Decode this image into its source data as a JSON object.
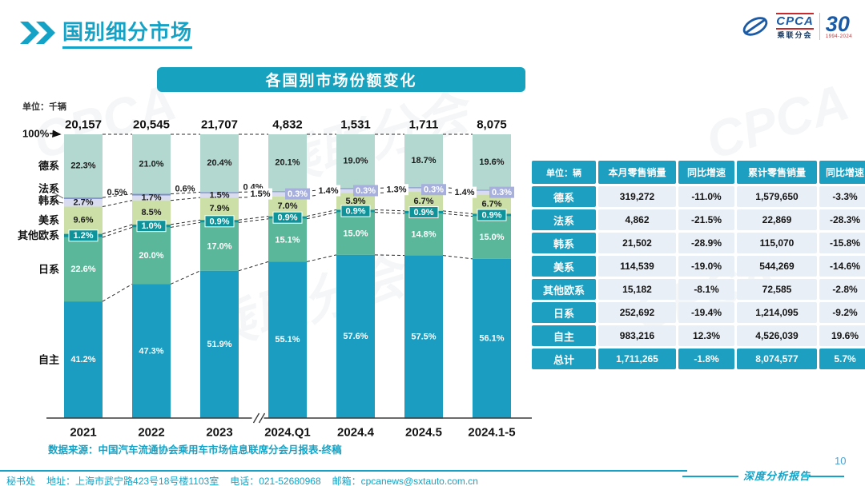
{
  "header": {
    "title": "国别细分市场",
    "logo": {
      "cpca": "CPCA",
      "sub": "乘联分会",
      "anniversary": "30",
      "years": "1994-2024"
    }
  },
  "colors": {
    "accent": "#14A3C6",
    "table_teal": "#1C9FC0"
  },
  "chart_data": {
    "type": "bar",
    "subtype": "stacked-100pct-column",
    "title": "各国别市场份额变化",
    "unit_label": "单位：千辆",
    "hundred_label": "100%",
    "categories": [
      "2021",
      "2022",
      "2023",
      "2024.Q1",
      "2024.4",
      "2024.5",
      "2024.1-5"
    ],
    "totals_thousand": [
      "20,157",
      "20,545",
      "21,707",
      "4,832",
      "1,531",
      "1,711",
      "8,075"
    ],
    "axis_break_after_index": 2,
    "legend_position": "left",
    "ylim": [
      0,
      100
    ],
    "series": [
      {
        "name": "德系",
        "color": "#B3D8D0",
        "values": [
          22.3,
          21.0,
          20.4,
          20.1,
          19.0,
          18.7,
          19.6
        ]
      },
      {
        "name": "法系",
        "color": "#7B8CC8",
        "badge_color": "#A7B0DC",
        "values": [
          0.5,
          0.6,
          0.4,
          0.3,
          0.3,
          0.3,
          0.3
        ]
      },
      {
        "name": "韩系",
        "color": "#D9DCEE",
        "values": [
          2.7,
          1.7,
          1.5,
          1.5,
          1.4,
          1.3,
          1.4
        ]
      },
      {
        "name": "美系",
        "color": "#CBDFA6",
        "values": [
          9.6,
          8.5,
          7.9,
          7.0,
          5.9,
          6.7,
          6.7
        ]
      },
      {
        "name": "其他欧系",
        "color": "#0E939B",
        "values": [
          1.2,
          1.0,
          0.9,
          0.9,
          0.9,
          0.9,
          0.9
        ]
      },
      {
        "name": "日系",
        "color": "#5BB79A",
        "values": [
          22.6,
          20.0,
          17.0,
          15.1,
          15.0,
          14.8,
          15.0
        ]
      },
      {
        "name": "自主",
        "color": "#1A9DC0",
        "values": [
          41.2,
          47.3,
          51.9,
          55.1,
          57.6,
          57.5,
          56.1
        ]
      }
    ],
    "source": "数据来源：中国汽车流通协会乘用车市场信息联席分会月报表-终稿"
  },
  "table": {
    "unit_header": "单位：辆",
    "columns": [
      "本月零售销量",
      "同比增速",
      "累计零售销量",
      "同比增速"
    ],
    "rows": [
      {
        "label": "德系",
        "cells": [
          "319,272",
          "-11.0%",
          "1,579,650",
          "-3.3%"
        ],
        "is_total": false
      },
      {
        "label": "法系",
        "cells": [
          "4,862",
          "-21.5%",
          "22,869",
          "-28.3%"
        ],
        "is_total": false
      },
      {
        "label": "韩系",
        "cells": [
          "21,502",
          "-28.9%",
          "115,070",
          "-15.8%"
        ],
        "is_total": false
      },
      {
        "label": "美系",
        "cells": [
          "114,539",
          "-19.0%",
          "544,269",
          "-14.6%"
        ],
        "is_total": false
      },
      {
        "label": "其他欧系",
        "cells": [
          "15,182",
          "-8.1%",
          "72,585",
          "-2.8%"
        ],
        "is_total": false
      },
      {
        "label": "日系",
        "cells": [
          "252,692",
          "-19.4%",
          "1,214,095",
          "-9.2%"
        ],
        "is_total": false
      },
      {
        "label": "自主",
        "cells": [
          "983,216",
          "12.3%",
          "4,526,039",
          "19.6%"
        ],
        "is_total": false
      },
      {
        "label": "总计",
        "cells": [
          "1,711,265",
          "-1.8%",
          "8,074,577",
          "5.7%"
        ],
        "is_total": true
      }
    ]
  },
  "footer": {
    "secretariat": "秘书处",
    "address": "地址：上海市武宁路423号18号楼1103室",
    "phone": "电话：021-52680968",
    "email": "邮箱：cpcanews@sxtauto.com.cn",
    "report_label": "深度分析报告",
    "page": "10"
  },
  "watermark": {
    "text1": "CPCA",
    "text2": "乘联分会"
  }
}
